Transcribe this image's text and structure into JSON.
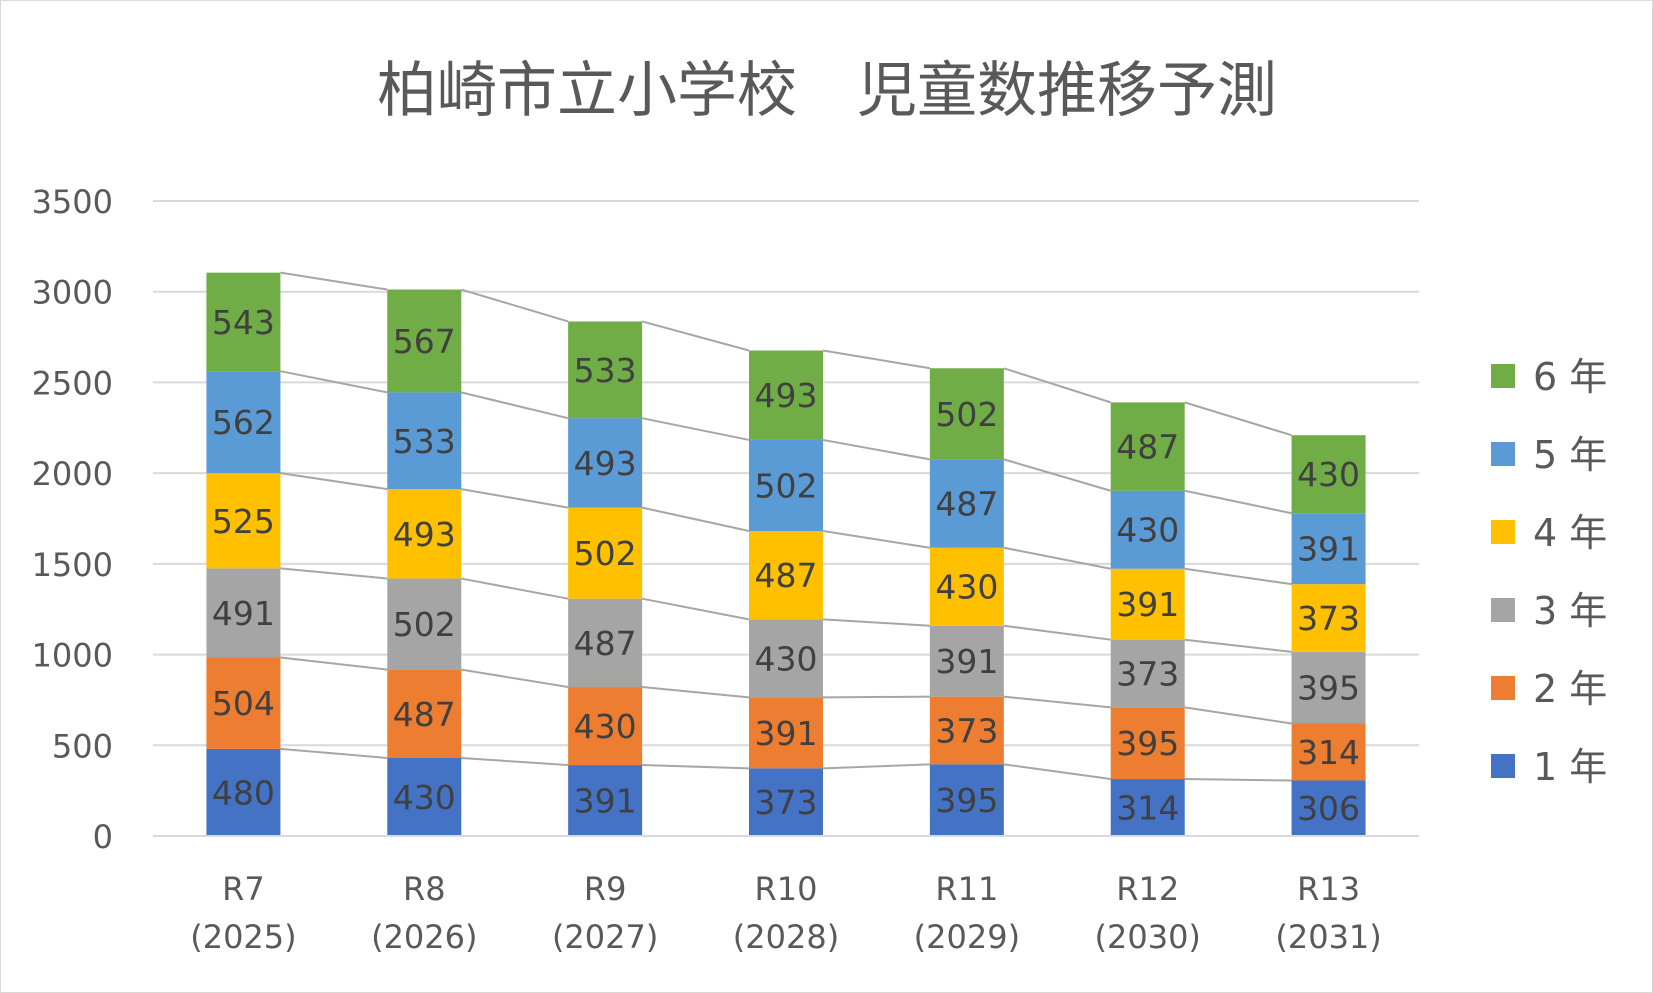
{
  "chart_data": {
    "type": "bar",
    "stacked": true,
    "title": "柏崎市立小学校　児童数推移予測",
    "xlabel": "",
    "ylabel": "",
    "categories": [
      [
        "R7",
        "(2025)"
      ],
      [
        "R8",
        "(2026)"
      ],
      [
        "R9",
        "(2027)"
      ],
      [
        "R10",
        "(2028)"
      ],
      [
        "R11",
        "(2029)"
      ],
      [
        "R12",
        "(2030)"
      ],
      [
        "R13",
        "(2031)"
      ]
    ],
    "ylim": [
      0,
      3500
    ],
    "yticks": [
      "0",
      "500",
      "1000",
      "1500",
      "2000",
      "2500",
      "3000",
      "3500"
    ],
    "grid": true,
    "series_lines": true,
    "legend_position": "right",
    "series": [
      {
        "name": "1 年",
        "color": "#4472C4",
        "values": [
          480,
          430,
          391,
          373,
          395,
          314,
          306
        ]
      },
      {
        "name": "2 年",
        "color": "#ED7D31",
        "values": [
          504,
          487,
          430,
          391,
          373,
          395,
          314
        ]
      },
      {
        "name": "3 年",
        "color": "#A5A5A5",
        "values": [
          491,
          502,
          487,
          430,
          391,
          373,
          395
        ]
      },
      {
        "name": "4 年",
        "color": "#FFC000",
        "values": [
          525,
          493,
          502,
          487,
          430,
          391,
          373
        ]
      },
      {
        "name": "5 年",
        "color": "#5B9BD5",
        "values": [
          562,
          533,
          493,
          502,
          487,
          430,
          391
        ]
      },
      {
        "name": "6 年",
        "color": "#70AD47",
        "values": [
          543,
          567,
          533,
          493,
          502,
          487,
          430
        ]
      }
    ]
  }
}
